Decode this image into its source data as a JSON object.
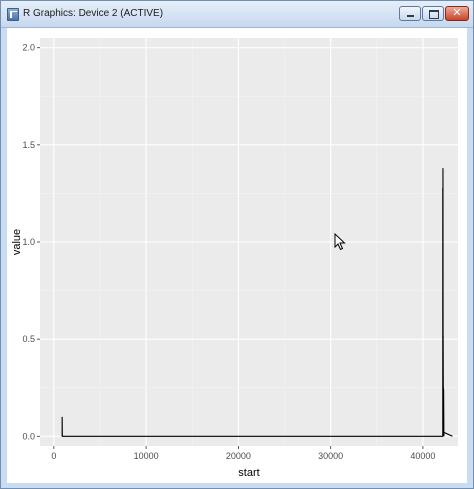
{
  "window": {
    "title": "R Graphics: Device 2 (ACTIVE)",
    "controls": [
      "minimize-icon",
      "maximize-icon",
      "close-icon"
    ]
  },
  "colors": {
    "panel": "#ebebeb",
    "grid_major": "#ffffff",
    "grid_minor": "#f4f4f4",
    "line": "#000000"
  },
  "chart_data": {
    "type": "line",
    "title": "",
    "xlabel": "start",
    "ylabel": "value",
    "xlim": [
      -1500,
      43800
    ],
    "ylim": [
      -0.05,
      2.05
    ],
    "x_ticks": [
      0,
      10000,
      20000,
      30000,
      40000
    ],
    "x_tick_labels": [
      "0",
      "10000",
      "20000",
      "30000",
      "40000"
    ],
    "y_ticks": [
      0.0,
      0.5,
      1.0,
      1.5,
      2.0
    ],
    "y_tick_labels": [
      "0.0",
      "0.5",
      "1.0",
      "1.5",
      "2.0"
    ],
    "grid": true,
    "series": [
      {
        "x": [
          900,
          900,
          920,
          42150,
          42150,
          42170,
          42170,
          42190,
          42190,
          42220,
          42220,
          42240,
          42240,
          42270,
          42270,
          43200
        ],
        "y": [
          0.0,
          0.1,
          0.0,
          0.0,
          1.28,
          0.0,
          1.38,
          0.0,
          0.52,
          0.0,
          0.25,
          0.0,
          0.24,
          0.0,
          0.02,
          0.0
        ]
      }
    ]
  }
}
